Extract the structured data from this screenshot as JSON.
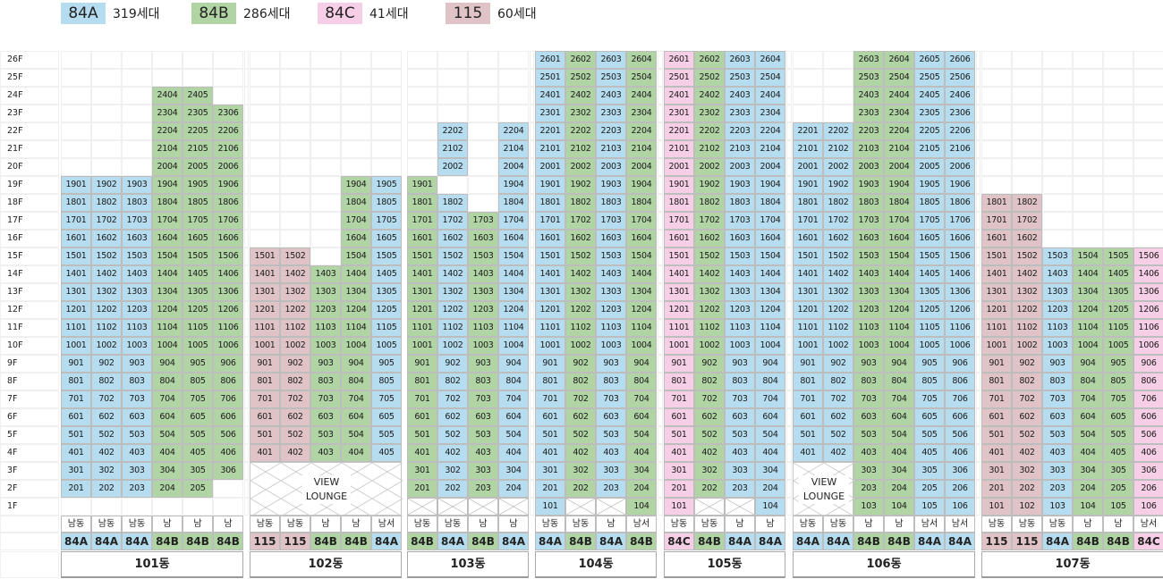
{
  "legend": [
    {
      "code": "84A",
      "label": "319세대",
      "color": "#b5dcef"
    },
    {
      "code": "84B",
      "label": "286세대",
      "color": "#b0d4a4"
    },
    {
      "code": "84C",
      "label": "41세대",
      "color": "#f6cfe6"
    },
    {
      "code": "115",
      "label": "60세대",
      "color": "#e0c3c6"
    }
  ],
  "floor_labels": [
    "26F",
    "25F",
    "24F",
    "23F",
    "22F",
    "21F",
    "20F",
    "19F",
    "18F",
    "17F",
    "16F",
    "15F",
    "14F",
    "13F",
    "12F",
    "11F",
    "10F",
    "9F",
    "8F",
    "7F",
    "6F",
    "5F",
    "4F",
    "3F",
    "2F",
    "1F"
  ],
  "view_lounge_label": "VIEW LOUNGE",
  "buildings": [
    {
      "name": "101동",
      "directions": [
        "남동",
        "남동",
        "남동",
        "남",
        "남",
        "남"
      ],
      "types": [
        "84A",
        "84A",
        "84A",
        "84B",
        "84B",
        "84B"
      ],
      "top": [
        19,
        19,
        19,
        24,
        24,
        23
      ],
      "bottom": [
        2,
        2,
        2,
        2,
        2,
        3
      ],
      "crossed_from": [
        null,
        null,
        null,
        null,
        null,
        null
      ],
      "lounge": false
    },
    {
      "name": "102동",
      "directions": [
        "남동",
        "남동",
        "남",
        "남",
        "남서"
      ],
      "types": [
        "115",
        "115",
        "84B",
        "84B",
        "84A"
      ],
      "top": [
        15,
        15,
        14,
        19,
        19
      ],
      "bottom": [
        4,
        4,
        4,
        4,
        4
      ],
      "crossed_from": [
        3,
        3,
        3,
        3,
        3
      ],
      "lounge": true
    },
    {
      "name": "103동",
      "directions": [
        "남동",
        "남동",
        "남",
        "남"
      ],
      "types": [
        "84B",
        "84A",
        "84B",
        "84A"
      ],
      "top": [
        19,
        18,
        17,
        19
      ],
      "bottom": [
        2,
        2,
        2,
        2
      ],
      "crossed_from": [
        1,
        1,
        1,
        1
      ],
      "lounge": false,
      "extra": [
        {
          "col": 1,
          "floors": [
            22,
            21,
            20
          ]
        },
        {
          "col": 3,
          "floors": [
            22,
            21,
            20
          ]
        }
      ]
    },
    {
      "name": "104동",
      "directions": [
        "남동",
        "남동",
        "남",
        "남서"
      ],
      "types": [
        "84A",
        "84B",
        "84A",
        "84B"
      ],
      "top": [
        26,
        26,
        26,
        26
      ],
      "bottom": [
        1,
        2,
        2,
        1
      ],
      "crossed_from": [
        null,
        1,
        1,
        null
      ],
      "lounge": false
    },
    {
      "name": "105동",
      "directions": [
        "남동",
        "남동",
        "남",
        "남"
      ],
      "types": [
        "84C",
        "84B",
        "84A",
        "84A"
      ],
      "top": [
        26,
        26,
        26,
        26
      ],
      "bottom": [
        1,
        2,
        2,
        1
      ],
      "crossed_from": [
        null,
        1,
        1,
        null
      ],
      "lounge": false
    },
    {
      "name": "106동",
      "directions": [
        "남동",
        "남동",
        "남",
        "남",
        "남서",
        "남서"
      ],
      "types": [
        "84A",
        "84A",
        "84B",
        "84B",
        "84A",
        "84A"
      ],
      "top": [
        22,
        22,
        26,
        26,
        26,
        26
      ],
      "bottom": [
        4,
        4,
        1,
        1,
        1,
        1
      ],
      "crossed_from": [
        3,
        3,
        null,
        null,
        null,
        null
      ],
      "lounge": true
    },
    {
      "name": "107동",
      "directions": [
        "남동",
        "남동",
        "남동",
        "남",
        "남",
        "남서"
      ],
      "types": [
        "115",
        "115",
        "84A",
        "84B",
        "84B",
        "84C"
      ],
      "top": [
        18,
        18,
        15,
        15,
        15,
        15
      ],
      "bottom": [
        1,
        1,
        1,
        1,
        1,
        1
      ],
      "crossed_from": [
        null,
        null,
        null,
        null,
        null,
        null
      ],
      "lounge": false
    }
  ]
}
